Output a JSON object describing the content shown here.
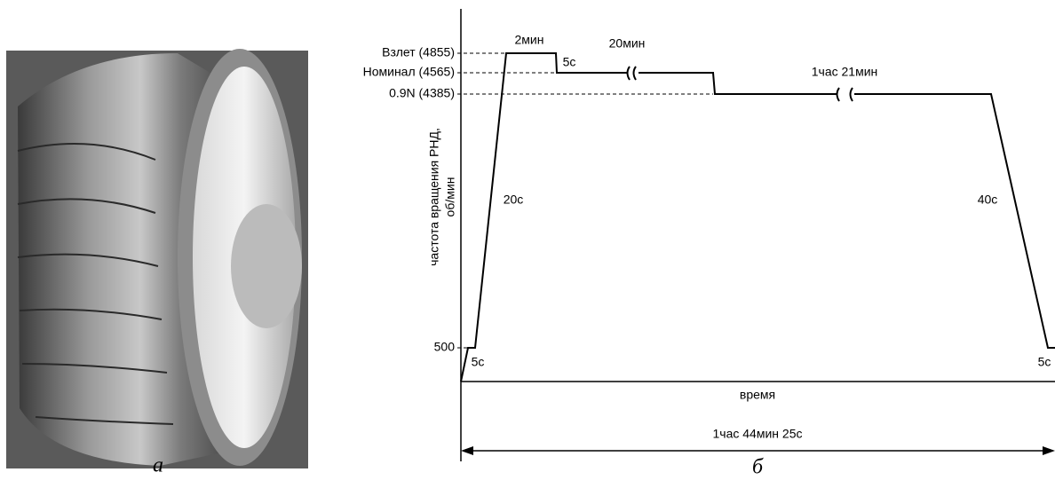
{
  "photo": {
    "caption": "а"
  },
  "diagram": {
    "caption": "б",
    "y_axis_title": [
      "частота вращения РНД,",
      "об/мин"
    ],
    "levels": [
      "Взлет (4855)",
      "Номинал (4565)",
      "0.9N (4385)",
      "500"
    ],
    "x_axis_title": "время",
    "total_duration": "1час 44мин 25с",
    "annotations": [
      "2мин",
      "5с",
      "20мин",
      "1час 21мин",
      "20с",
      "40с",
      "5с",
      "5с"
    ]
  }
}
